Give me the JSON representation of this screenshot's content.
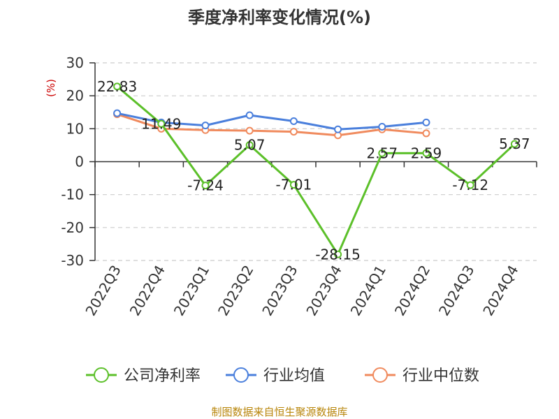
{
  "chart_data": {
    "type": "line",
    "title": "季度净利率变化情况(%)",
    "ylabel": "(%)",
    "ylim": [
      -30,
      30
    ],
    "yticks": [
      30,
      20,
      10,
      0,
      -10,
      -20,
      -30
    ],
    "grid": "horizontal-dashed",
    "legend_position": "bottom",
    "categories": [
      "2022Q3",
      "2022Q4",
      "2023Q1",
      "2023Q2",
      "2023Q3",
      "2023Q4",
      "2024Q1",
      "2024Q2",
      "2024Q3",
      "2024Q4"
    ],
    "series": [
      {
        "name": "公司净利率",
        "color": "#5cc02a",
        "show_labels": true,
        "values": [
          22.83,
          11.49,
          -7.24,
          5.07,
          -7.01,
          -28.15,
          2.57,
          2.59,
          -7.12,
          5.37
        ],
        "labels": [
          "22.83",
          "11.49",
          "-7.24",
          "5.07",
          "-7.01",
          "-28.15",
          "2.57",
          "2.59",
          "-7.12",
          "5.37"
        ]
      },
      {
        "name": "行业均值",
        "color": "#4a7fdc",
        "show_labels": false,
        "values": [
          14.7,
          11.9,
          11.0,
          14.1,
          12.3,
          9.8,
          10.6,
          11.9,
          null,
          null
        ]
      },
      {
        "name": "行业中位数",
        "color": "#f08a5d",
        "show_labels": false,
        "values": [
          14.4,
          10.0,
          9.6,
          9.4,
          9.1,
          8.0,
          9.8,
          8.6,
          null,
          null
        ]
      }
    ]
  },
  "footer": "制图数据来自恒生聚源数据库"
}
